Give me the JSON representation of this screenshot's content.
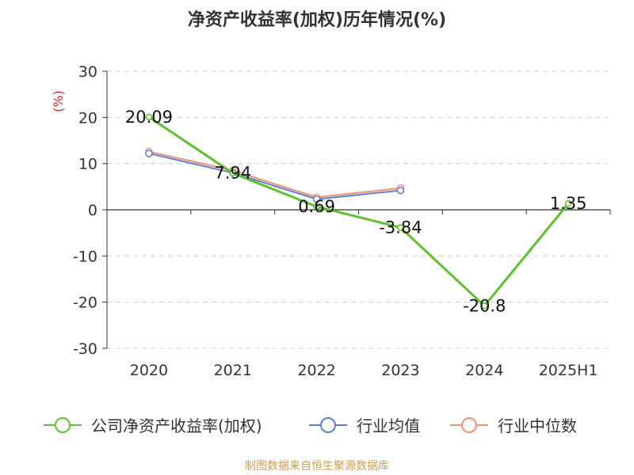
{
  "title": "净资产收益率(加权)历年情况(%)",
  "source": "制图数据来自恒生聚源数据库",
  "chart_data": {
    "type": "line",
    "categories": [
      "2020",
      "2021",
      "2022",
      "2023",
      "2024",
      "2025H1"
    ],
    "ylabel": "(%)",
    "ylim": [
      -30,
      30
    ],
    "yticks": [
      30,
      20,
      10,
      0,
      -10,
      -20,
      -30
    ],
    "grid": true,
    "legend_position": "bottom",
    "series": [
      {
        "name": "公司净资产收益率(加权)",
        "color": "#5cc22c",
        "values": [
          20.09,
          7.94,
          0.69,
          -3.84,
          -20.8,
          1.35
        ],
        "labels": [
          "20.09",
          "7.94",
          "0.69",
          "-3.84",
          "-20.8",
          "1.35"
        ]
      },
      {
        "name": "行业均值",
        "color": "#5b7fd8",
        "values": [
          12.2,
          8.0,
          2.3,
          4.2,
          null,
          null
        ]
      },
      {
        "name": "行业中位数",
        "color": "#f3906b",
        "values": [
          12.6,
          8.5,
          2.7,
          4.7,
          null,
          null
        ]
      }
    ]
  },
  "colors": {
    "axis": "#333333",
    "grid": "#cccccc",
    "ylabel": "#dd2222",
    "title": "#333333",
    "source": "#c8a050"
  }
}
